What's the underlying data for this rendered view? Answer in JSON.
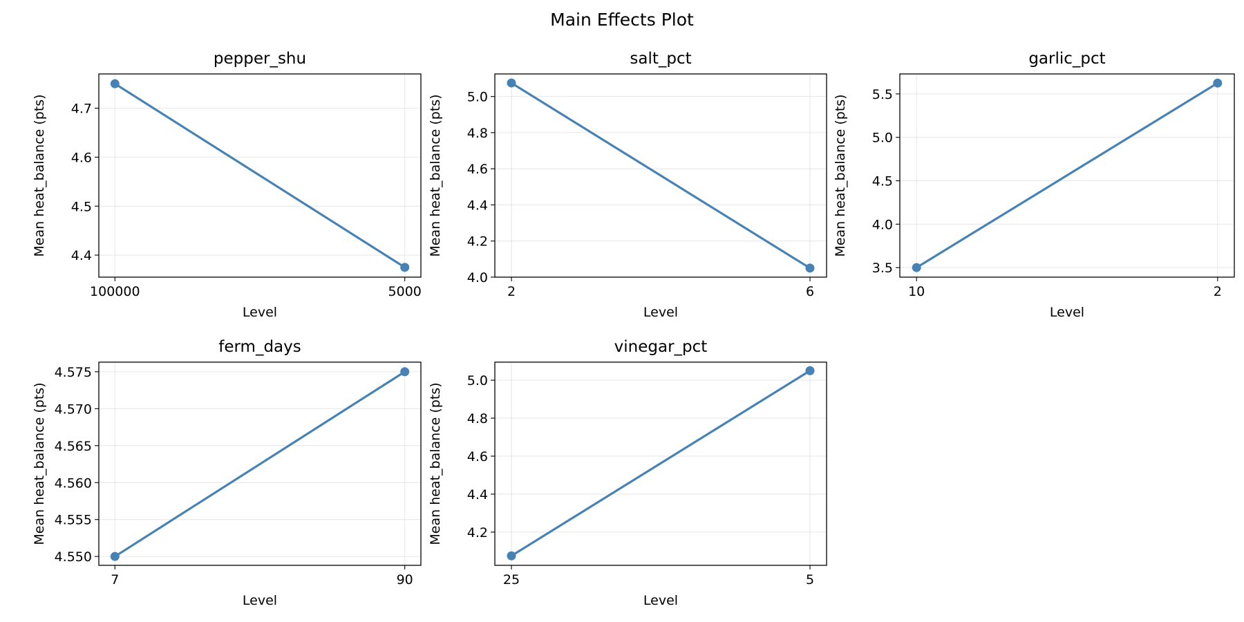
{
  "figure_title": "Main Effects Plot",
  "line_color": "#4682b4",
  "chart_data": [
    {
      "type": "line",
      "title": "pepper_shu",
      "xlabel": "Level",
      "ylabel": "Mean heat_balance (pts)",
      "categories": [
        "100000",
        "5000"
      ],
      "values": [
        4.75,
        4.375
      ],
      "ylim": [
        4.355,
        4.77
      ],
      "yticks": [
        "4.4",
        "4.5",
        "4.6",
        "4.7"
      ],
      "grid": true
    },
    {
      "type": "line",
      "title": "salt_pct",
      "xlabel": "Level",
      "ylabel": "Mean heat_balance (pts)",
      "categories": [
        "2",
        "6"
      ],
      "values": [
        5.075,
        4.05
      ],
      "ylim": [
        4.0,
        5.125
      ],
      "yticks": [
        "4.0",
        "4.2",
        "4.4",
        "4.6",
        "4.8",
        "5.0"
      ],
      "grid": true
    },
    {
      "type": "line",
      "title": "garlic_pct",
      "xlabel": "Level",
      "ylabel": "Mean heat_balance (pts)",
      "categories": [
        "10",
        "2"
      ],
      "values": [
        3.5,
        5.625
      ],
      "ylim": [
        3.39,
        5.73
      ],
      "yticks": [
        "3.5",
        "4.0",
        "4.5",
        "5.0",
        "5.5"
      ],
      "grid": true
    },
    {
      "type": "line",
      "title": "ferm_days",
      "xlabel": "Level",
      "ylabel": "Mean heat_balance (pts)",
      "categories": [
        "7",
        "90"
      ],
      "values": [
        4.55,
        4.575
      ],
      "ylim": [
        4.5488,
        4.5763
      ],
      "yticks": [
        "4.550",
        "4.555",
        "4.560",
        "4.565",
        "4.570",
        "4.575"
      ],
      "grid": true
    },
    {
      "type": "line",
      "title": "vinegar_pct",
      "xlabel": "Level",
      "ylabel": "Mean heat_balance (pts)",
      "categories": [
        "25",
        "5"
      ],
      "values": [
        4.075,
        5.05
      ],
      "ylim": [
        4.025,
        5.095
      ],
      "yticks": [
        "4.2",
        "4.4",
        "4.6",
        "4.8",
        "5.0"
      ],
      "grid": true
    }
  ]
}
